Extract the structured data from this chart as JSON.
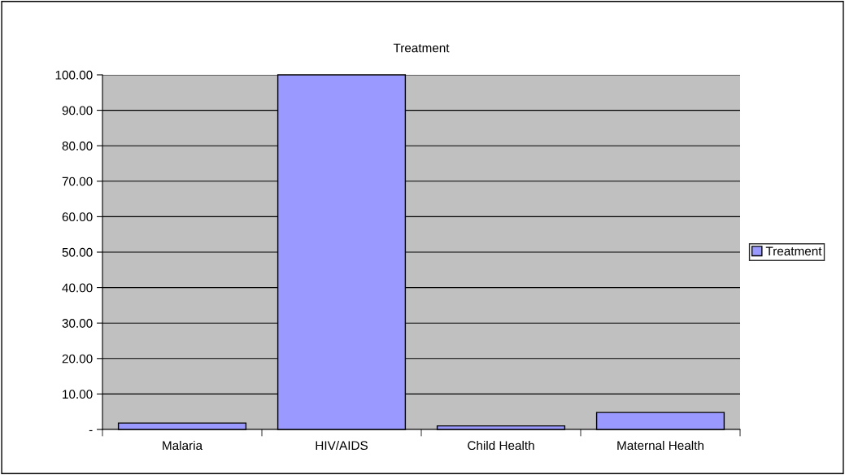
{
  "chart_data": {
    "type": "bar",
    "title": "Treatment",
    "categories": [
      "Malaria",
      "HIV/AIDS",
      "Child Health",
      "Maternal Health"
    ],
    "series": [
      {
        "name": "Treatment",
        "color": "#9999ff",
        "values": [
          1.8,
          100,
          1.0,
          4.8
        ]
      }
    ],
    "ylim": [
      0,
      100
    ],
    "yticks": [
      {
        "value": 0,
        "label": "-"
      },
      {
        "value": 10,
        "label": "10.00"
      },
      {
        "value": 20,
        "label": "20.00"
      },
      {
        "value": 30,
        "label": "30.00"
      },
      {
        "value": 40,
        "label": "40.00"
      },
      {
        "value": 50,
        "label": "50.00"
      },
      {
        "value": 60,
        "label": "60.00"
      },
      {
        "value": 70,
        "label": "70.00"
      },
      {
        "value": 80,
        "label": "80.00"
      },
      {
        "value": 90,
        "label": "90.00"
      },
      {
        "value": 100,
        "label": "100.00"
      }
    ],
    "grid": "y",
    "legend": "right"
  }
}
